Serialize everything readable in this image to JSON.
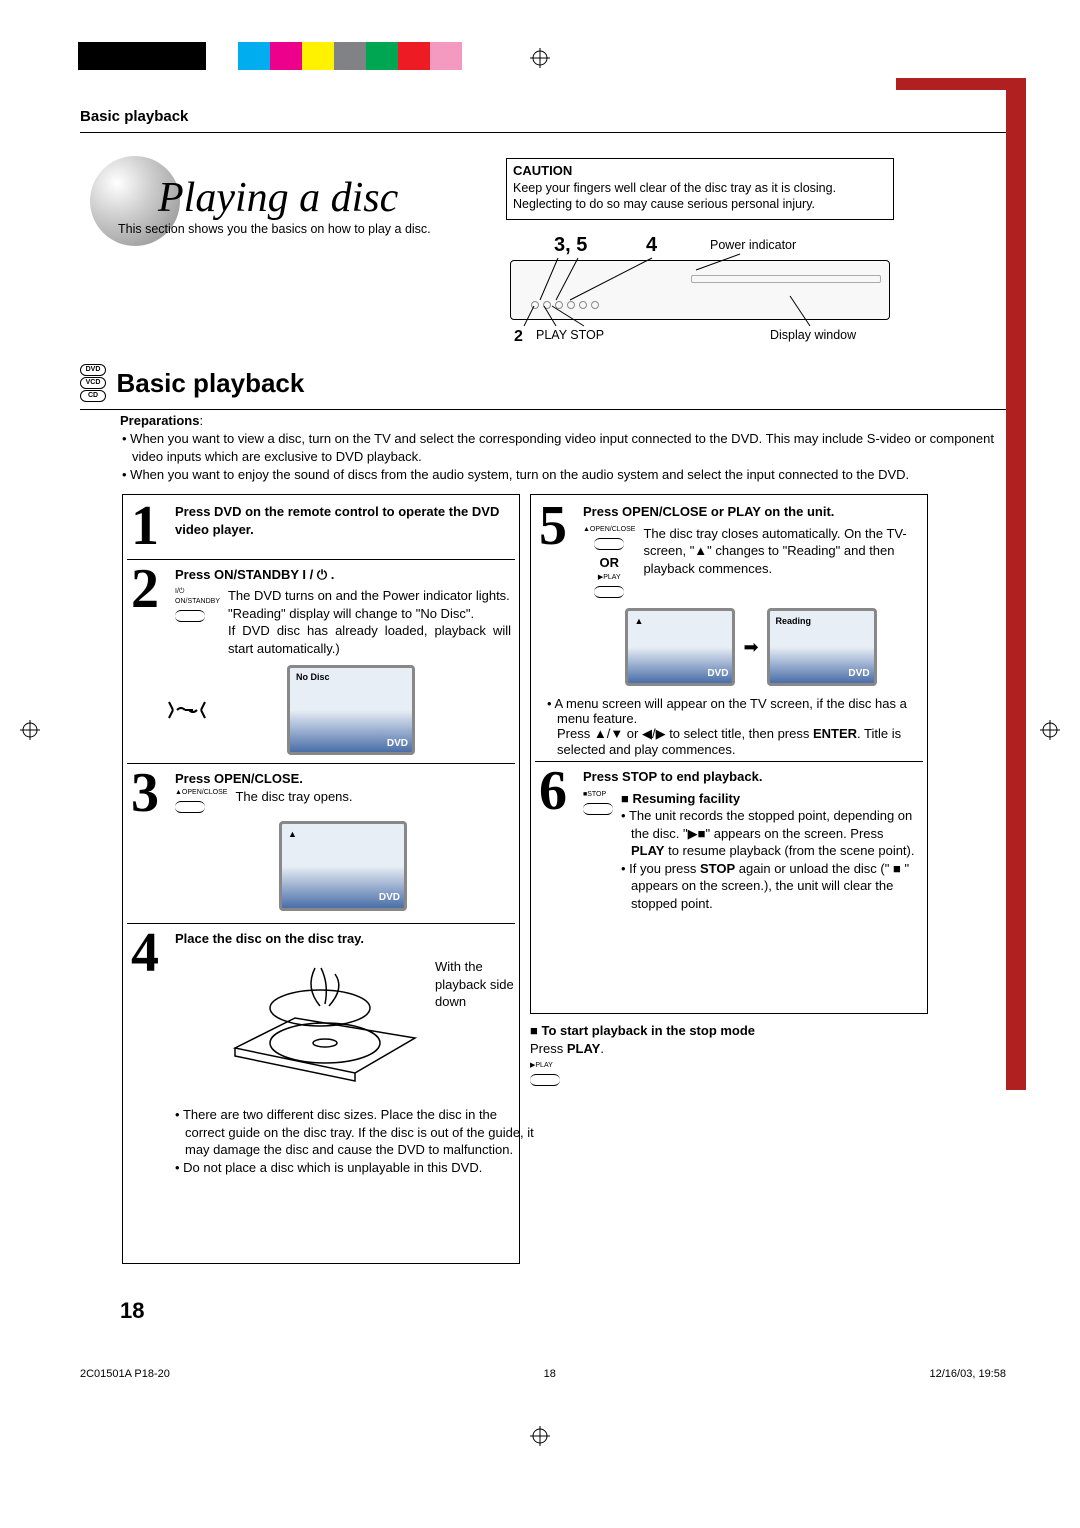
{
  "colorBar": [
    "#000000",
    "#000000",
    "#000000",
    "#000000",
    "#ffffff",
    "#00aeef",
    "#ec008c",
    "#fff200",
    "#808285",
    "#00a651",
    "#ed1c24",
    "#f49ac1"
  ],
  "header": {
    "breadcrumb": "Basic playback"
  },
  "hero": {
    "title": "Playing a disc",
    "intro": "This section shows you the basics on how to play a disc."
  },
  "caution": {
    "title": "CAUTION",
    "body": "Keep your fingers well clear of the disc tray as it is closing. Neglecting to do so may cause serious personal injury."
  },
  "device": {
    "label35": "3, 5",
    "label4": "4",
    "label2": "2",
    "powerIndicator": "Power indicator",
    "playStop": "PLAY  STOP",
    "displayWindow": "Display window"
  },
  "section": {
    "badges": [
      "DVD",
      "VCD",
      "CD"
    ],
    "name": "Basic playback"
  },
  "preparations": {
    "title": "Preparations",
    "items": [
      "When you want to view a disc, turn on the TV and select the corresponding video input connected to the DVD. This may include S-video or component video inputs which are exclusive to DVD playback.",
      "When you want to enjoy the sound of discs from the audio system, turn on the audio system and select the input connected to the DVD."
    ]
  },
  "leftSteps": {
    "s1": {
      "num": "1",
      "title": "Press DVD on the remote control to operate the DVD video player."
    },
    "s2": {
      "num": "2",
      "title": "Press ON/STANDBY I / ⏻ .",
      "btn": "I/⏻ ON/STANDBY",
      "l1": "The DVD turns on and the Power indicator lights.",
      "l2": "\"Reading\" display will change to \"No Disc\".",
      "l3": "If DVD disc has already loaded, playback will start automatically.)",
      "tvLabel": "No Disc",
      "tvBrand": "DVD"
    },
    "s3": {
      "num": "3",
      "title": "Press OPEN/CLOSE.",
      "btn": "▲OPEN/CLOSE",
      "l1": "The disc tray opens.",
      "tvBrand": "DVD"
    },
    "s4": {
      "num": "4",
      "title": "Place the disc on the disc tray.",
      "note": "With the playback side down",
      "b1": "There are two different disc sizes. Place the disc in the correct guide on the disc tray. If the disc is out of the guide, it may damage the disc and cause the DVD to malfunction.",
      "b2": "Do not place a disc which is unplayable in this DVD."
    }
  },
  "rightSteps": {
    "s5": {
      "num": "5",
      "title": "Press OPEN/CLOSE or PLAY on the unit.",
      "btnOpen": "▲OPEN/CLOSE",
      "or": "OR",
      "btnPlay": "▶PLAY",
      "l1": "The disc tray closes automatically. On the TV-screen, \"▲\" changes to \"Reading\" and then playback commences.",
      "r1": "Reading",
      "b1": "A menu screen will appear on the TV screen, if the disc has a menu feature.",
      "b2a": "Press ▲/▼ or ◀/▶ to select title, then press ",
      "b2b": "ENTER",
      "b2c": ". Title is selected and play commences.",
      "tvBrand": "DVD"
    },
    "s6": {
      "num": "6",
      "title": "Press STOP to end playback.",
      "btnStop": "■STOP",
      "rt": "■ Resuming facility",
      "r1a": "The unit records the stopped point, depending on the disc. \"▶■\" appears on the screen. Press ",
      "r1b": "PLAY",
      "r1c": " to resume playback (from the scene point).",
      "r2a": "If you press ",
      "r2b": "STOP",
      "r2c": " again or unload the disc (\" ■ \" appears on the screen.), the unit will clear the stopped point."
    }
  },
  "extra": {
    "title": "■ To start playback in the stop mode",
    "l1a": "Press ",
    "l1b": "PLAY",
    "l1c": ".",
    "btnPlay": "▶PLAY"
  },
  "pageNum": "18",
  "footer": {
    "docId": "2C01501A P18-20",
    "pg": "18",
    "date": "12/16/03, 19:58"
  }
}
